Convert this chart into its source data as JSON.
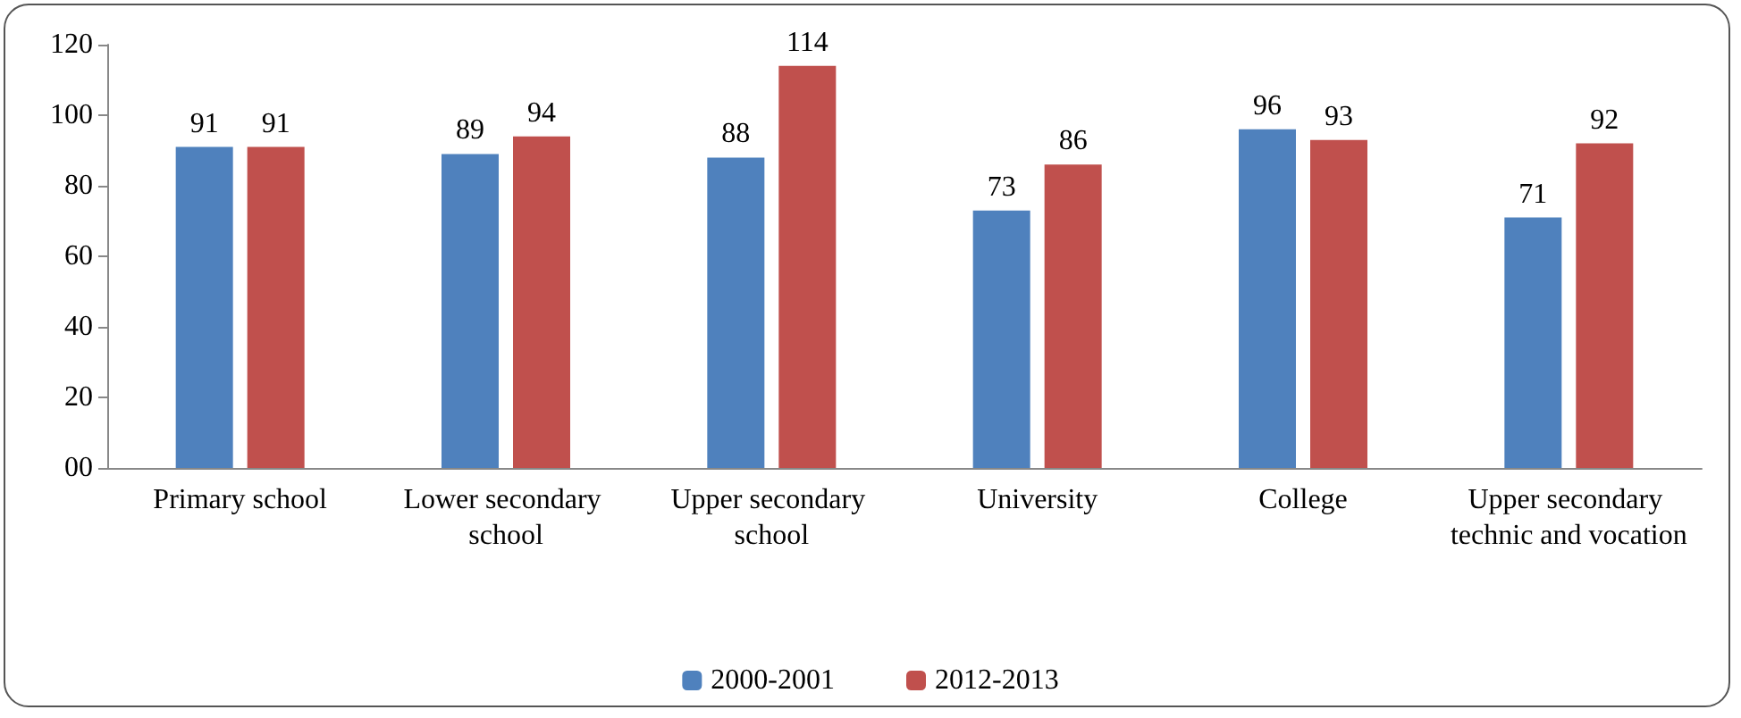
{
  "chart_data": {
    "type": "bar",
    "categories": [
      "Primary school",
      "Lower secondary school",
      "Upper secondary school",
      "University",
      "College",
      "Upper secondary technic and vocation"
    ],
    "series": [
      {
        "name": "2000-2001",
        "color": "#4f81bd",
        "values": [
          91,
          89,
          88,
          73,
          96,
          71
        ]
      },
      {
        "name": "2012-2013",
        "color": "#c0504d",
        "values": [
          91,
          94,
          114,
          86,
          93,
          92
        ]
      }
    ],
    "ylim": [
      0,
      120
    ],
    "yticks": [
      {
        "value": 0,
        "label": "00"
      },
      20,
      40,
      60,
      80,
      100,
      120
    ],
    "data_labels": true,
    "grid": false,
    "legend": "bottom"
  }
}
